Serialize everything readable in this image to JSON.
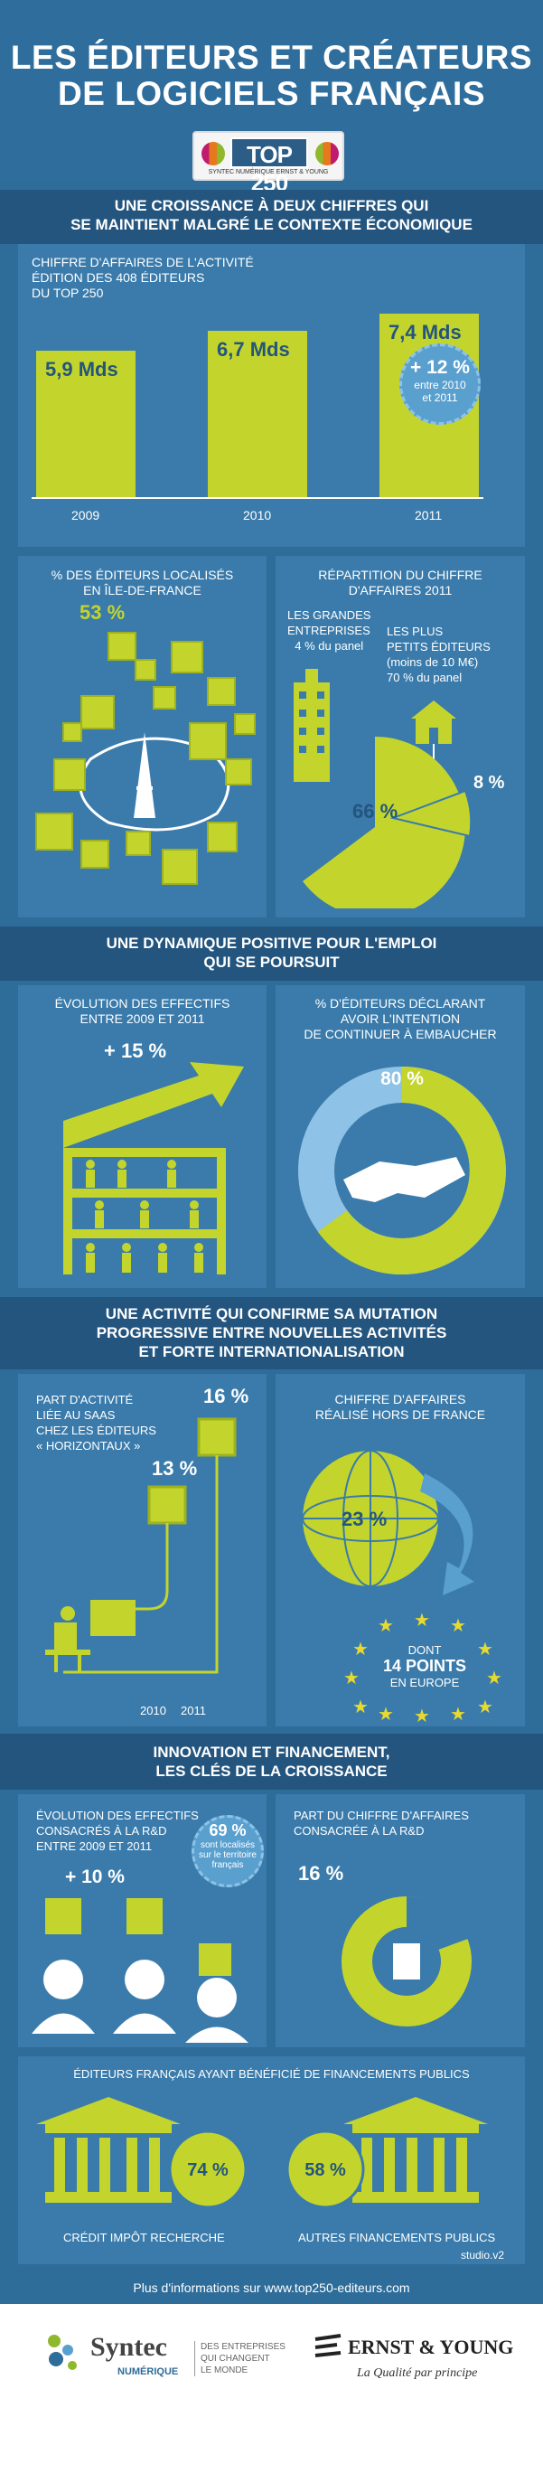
{
  "header": {
    "title_line1": "LES ÉDITEURS ET CRÉATEURS",
    "title_line2": "DE LOGICIELS FRANÇAIS",
    "logo_text": "TOP 250",
    "logo_sub": "SYNTEC NUMÉRIQUE ERNST & YOUNG"
  },
  "section1": {
    "title_line1": "UNE CROISSANCE À DEUX CHIFFRES QUI",
    "title_line2": "SE MAINTIENT MALGRÉ LE CONTEXTE ÉCONOMIQUE",
    "chart_label_1": "CHIFFRE D'AFFAIRES DE L'ACTIVITÉ",
    "chart_label_2": "ÉDITION DES 408 ÉDITEURS",
    "chart_label_3": "DU TOP 250",
    "growth_value": "+ 12 %",
    "growth_note_1": "entre 2010",
    "growth_note_2": "et 2011"
  },
  "section1b": {
    "idf_label_1": "% DES ÉDITEURS LOCALISÉS",
    "idf_label_2": "EN ÎLE-DE-FRANCE",
    "idf_value": "53 %",
    "split_title_1": "RÉPARTITION DU CHIFFRE",
    "split_title_2": "D'AFFAIRES 2011",
    "large_label_1": "LES GRANDES",
    "large_label_2": "ENTREPRISES",
    "large_label_3": "4 % du panel",
    "small_label_1": "LES PLUS",
    "small_label_2": "PETITS ÉDITEURS",
    "small_label_3": "(moins de 10 M€)",
    "small_label_4": "70 % du panel",
    "slice_big": "66 %",
    "slice_small": "8 %"
  },
  "section2": {
    "title_line1": "UNE DYNAMIQUE POSITIVE POUR L'EMPLOI",
    "title_line2": "QUI SE POURSUIT",
    "staff_label_1": "ÉVOLUTION DES EFFECTIFS",
    "staff_label_2": "ENTRE 2009 ET 2011",
    "staff_value": "+ 15 %",
    "hire_label_1": "% D'ÉDITEURS DÉCLARANT",
    "hire_label_2": "AVOIR L'INTENTION",
    "hire_label_3": "DE CONTINUER À EMBAUCHER",
    "hire_value": "80 %"
  },
  "section3": {
    "title_line1": "UNE ACTIVITÉ QUI CONFIRME SA MUTATION",
    "title_line2": "PROGRESSIVE ENTRE NOUVELLES ACTIVITÉS",
    "title_line3": "ET FORTE INTERNATIONALISATION",
    "saas_label_1": "PART D'ACTIVITÉ",
    "saas_label_2": "LIÉE AU SAAS",
    "saas_label_3": "CHEZ LES ÉDITEURS",
    "saas_label_4": "« HORIZONTAUX »",
    "saas_2011": "16 %",
    "saas_2010": "13 %",
    "year_2010": "2010",
    "year_2011": "2011",
    "intl_label_1": "CHIFFRE D'AFFAIRES",
    "intl_label_2": "RÉALISÉ HORS DE FRANCE",
    "intl_value": "23 %",
    "eu_1": "DONT",
    "eu_2": "14 POINTS",
    "eu_3": "EN EUROPE"
  },
  "section4": {
    "title_line1": "INNOVATION ET FINANCEMENT,",
    "title_line2": "LES CLÉS DE LA CROISSANCE",
    "rd_label_1": "ÉVOLUTION DES EFFECTIFS",
    "rd_label_2": "CONSACRÉS À LA R&D",
    "rd_label_3": "ENTRE 2009 ET 2011",
    "rd_value": "+ 10 %",
    "local_value": "69 %",
    "local_1": "sont localisés",
    "local_2": "sur le territoire",
    "local_3": "français",
    "rdshare_label_1": "PART DU CHIFFRE D'AFFAIRES",
    "rdshare_label_2": "CONSACRÉE À LA R&D",
    "rdshare_value": "16 %",
    "funding_title": "ÉDITEURS FRANÇAIS AYANT BÉNÉFICIÉ DE FINANCEMENTS PUBLICS",
    "cir_value": "74 %",
    "other_value": "58 %",
    "cir_label": "CRÉDIT IMPÔT RECHERCHE",
    "other_label": "AUTRES FINANCEMENTS PUBLICS",
    "studio": "studio.v2"
  },
  "footer": {
    "more_info": "Plus d'informations sur www.top250-editeurs.com",
    "syntec": "Syntec",
    "numerique": "NUMÉRIQUE",
    "tagline_1": "DES ENTREPRISES",
    "tagline_2": "QUI CHANGENT",
    "tagline_3": "LE MONDE",
    "ey": "ERNST & YOUNG",
    "ey_slogan": "La Qualité par principe"
  },
  "colors": {
    "lime": "#c3d52c",
    "blue_dark": "#23557f",
    "blue_mid": "#2e6c99",
    "blue_light": "#3a7bab"
  },
  "chart_data": {
    "type": "bar",
    "categories": [
      "2009",
      "2010",
      "2011"
    ],
    "values": [
      5.9,
      6.7,
      7.4
    ],
    "labels": [
      "5,9 Mds",
      "6,7 Mds",
      "7,4 Mds"
    ],
    "ylim": [
      0,
      8
    ]
  }
}
